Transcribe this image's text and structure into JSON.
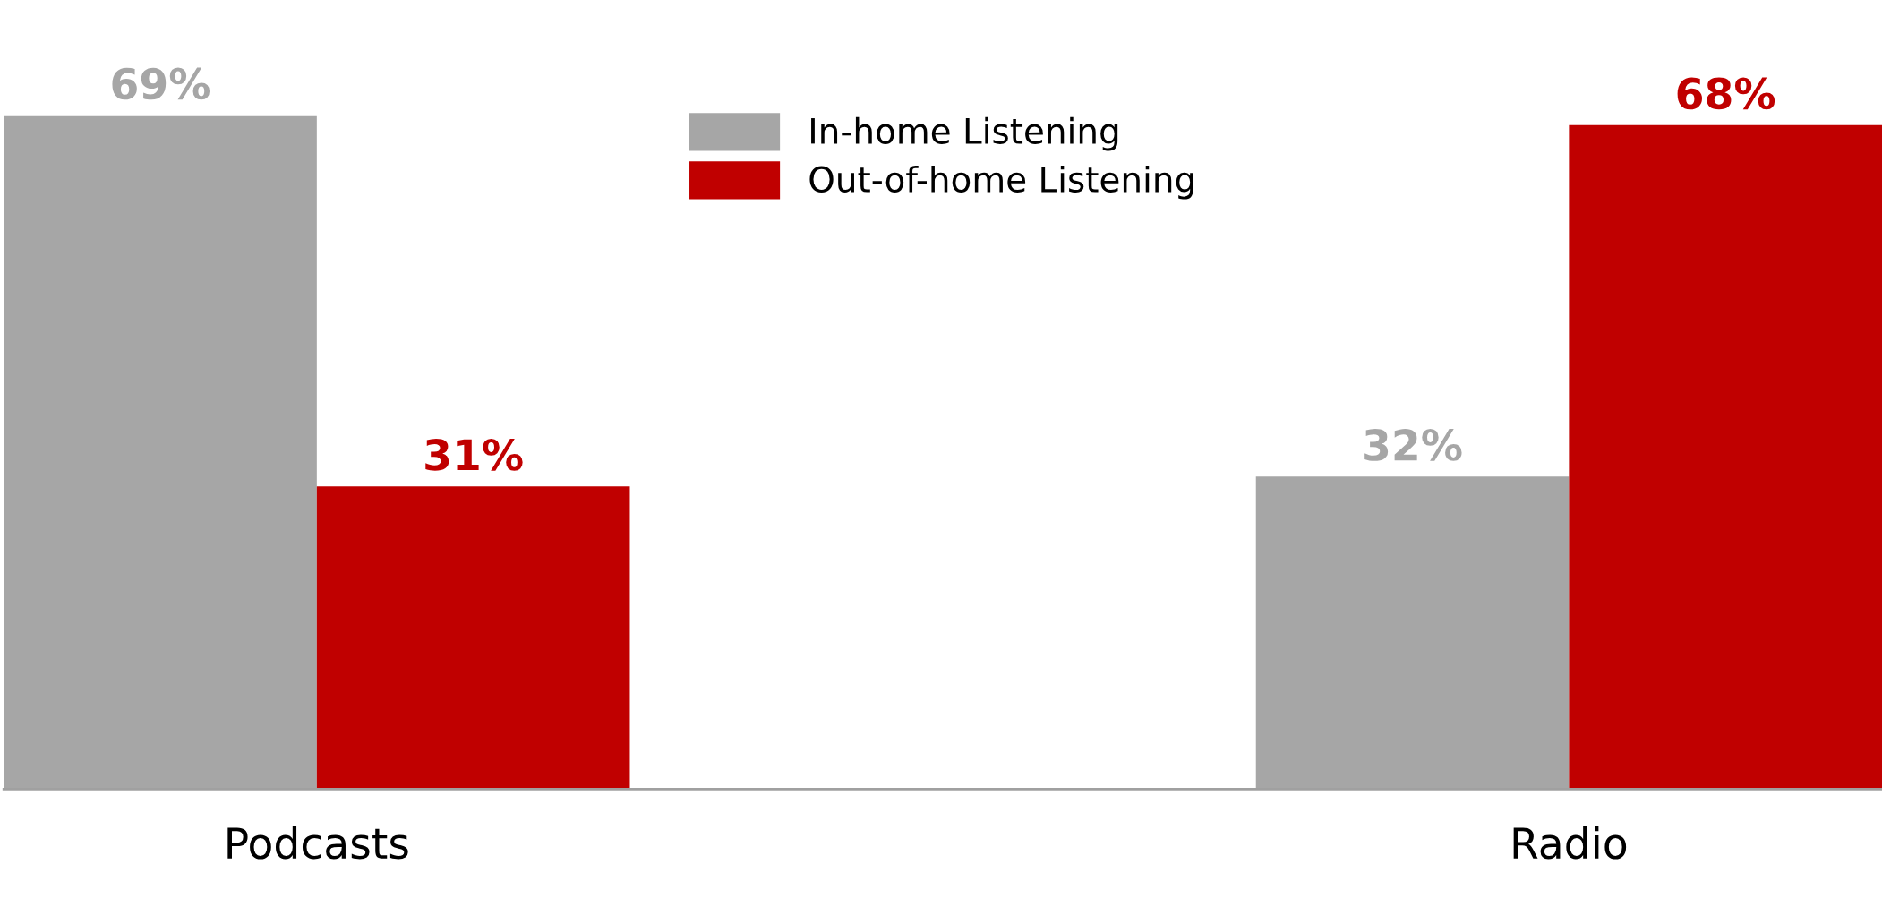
{
  "chart_data": {
    "type": "bar",
    "categories": [
      "Podcasts",
      "Radio"
    ],
    "series": [
      {
        "name": "In-home Listening",
        "color": "#a6a6a6",
        "values": [
          69,
          32
        ],
        "value_labels": [
          "69%",
          "32%"
        ]
      },
      {
        "name": "Out-of-home Listening",
        "color": "#c00000",
        "values": [
          31,
          68
        ],
        "value_labels": [
          "31%",
          "68%"
        ]
      }
    ],
    "legend": "top",
    "grid": false
  }
}
